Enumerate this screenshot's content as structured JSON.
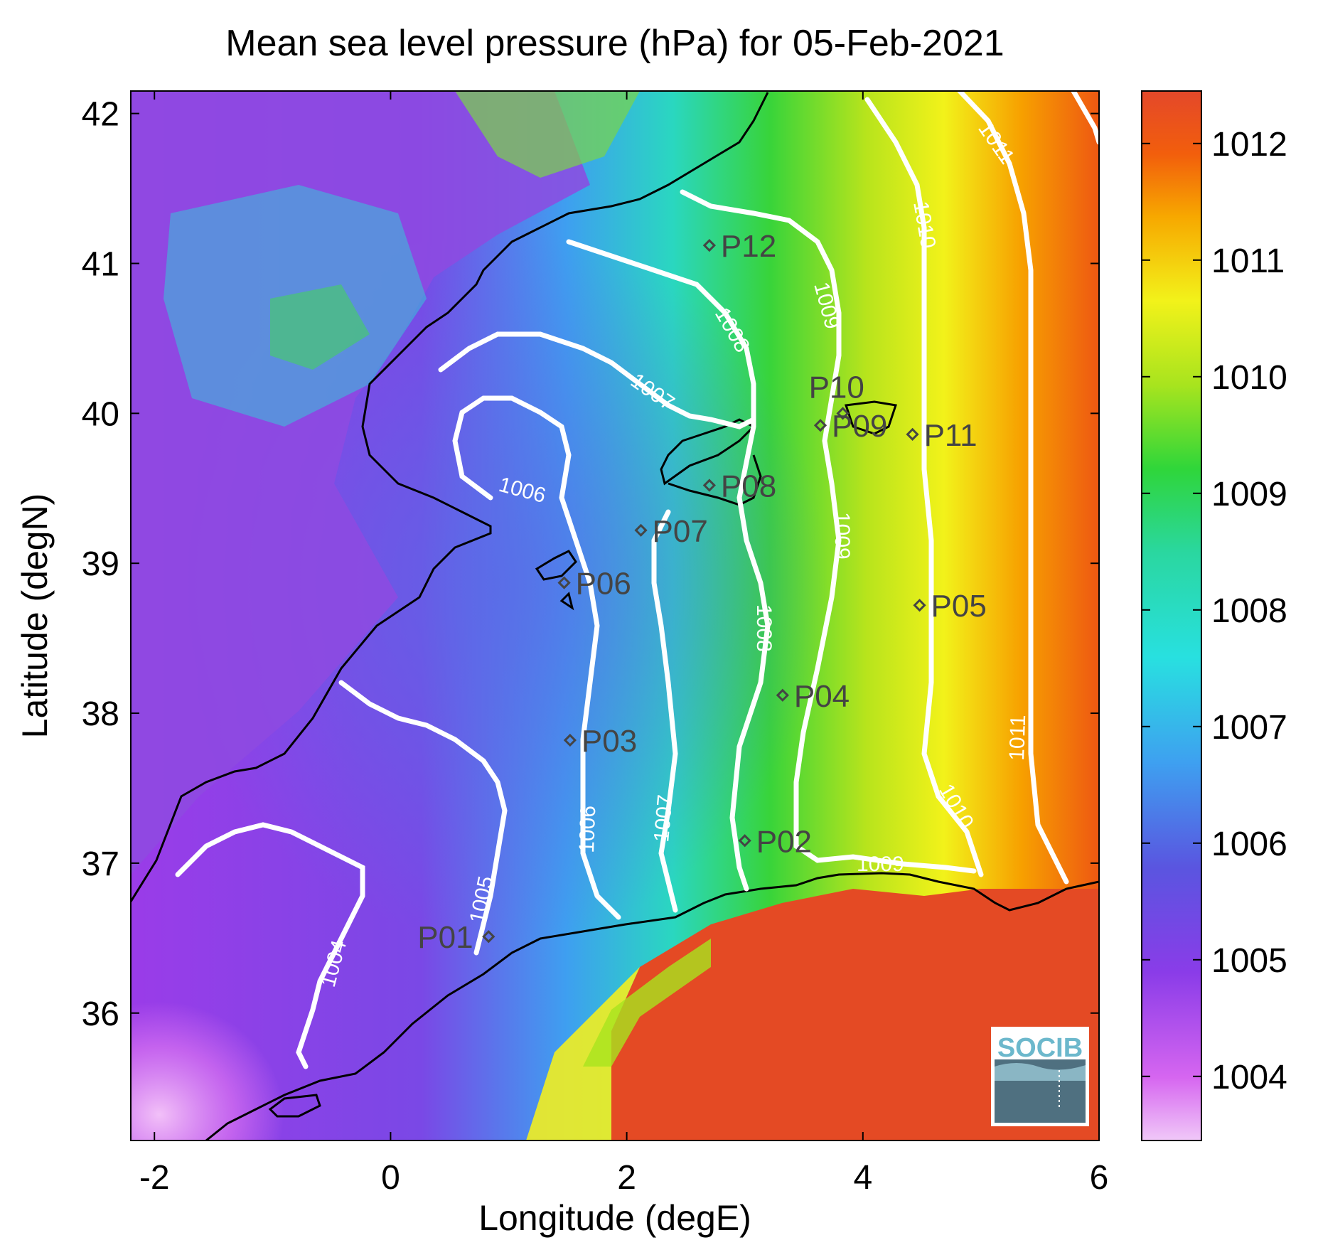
{
  "title": "Mean sea level pressure (hPa) for 05-Feb-2021",
  "xlabel": "Longitude (degE)",
  "ylabel": "Latitude (degN)",
  "x_ticks": [
    "-2",
    "0",
    "2",
    "4",
    "6"
  ],
  "y_ticks": [
    "36",
    "37",
    "38",
    "39",
    "40",
    "41",
    "42"
  ],
  "colorbar_ticks": [
    "1004",
    "1005",
    "1006",
    "1007",
    "1008",
    "1009",
    "1010",
    "1011",
    "1012"
  ],
  "contour_labels": [
    "1004",
    "1005",
    "1006",
    "1006",
    "1007",
    "1007",
    "1008",
    "1008",
    "1009",
    "1009",
    "1009",
    "1010",
    "1010",
    "1011",
    "1011"
  ],
  "stations": [
    {
      "id": "P01",
      "lon": 0.83,
      "lat": 36.51
    },
    {
      "id": "P02",
      "lon": 3.0,
      "lat": 37.15
    },
    {
      "id": "P03",
      "lon": 1.52,
      "lat": 37.82
    },
    {
      "id": "P04",
      "lon": 3.32,
      "lat": 38.12
    },
    {
      "id": "P05",
      "lon": 4.48,
      "lat": 38.72
    },
    {
      "id": "P06",
      "lon": 1.47,
      "lat": 38.87
    },
    {
      "id": "P07",
      "lon": 2.12,
      "lat": 39.22
    },
    {
      "id": "P08",
      "lon": 2.7,
      "lat": 39.52
    },
    {
      "id": "P09",
      "lon": 3.64,
      "lat": 39.92
    },
    {
      "id": "P10",
      "lon": 3.83,
      "lat": 40.0
    },
    {
      "id": "P11",
      "lon": 4.42,
      "lat": 39.86
    },
    {
      "id": "P12",
      "lon": 2.7,
      "lat": 41.12
    }
  ],
  "logo": "SOCIB",
  "colors": {
    "contour": "#ffffff",
    "coast": "#000000",
    "station": "#444444"
  }
}
